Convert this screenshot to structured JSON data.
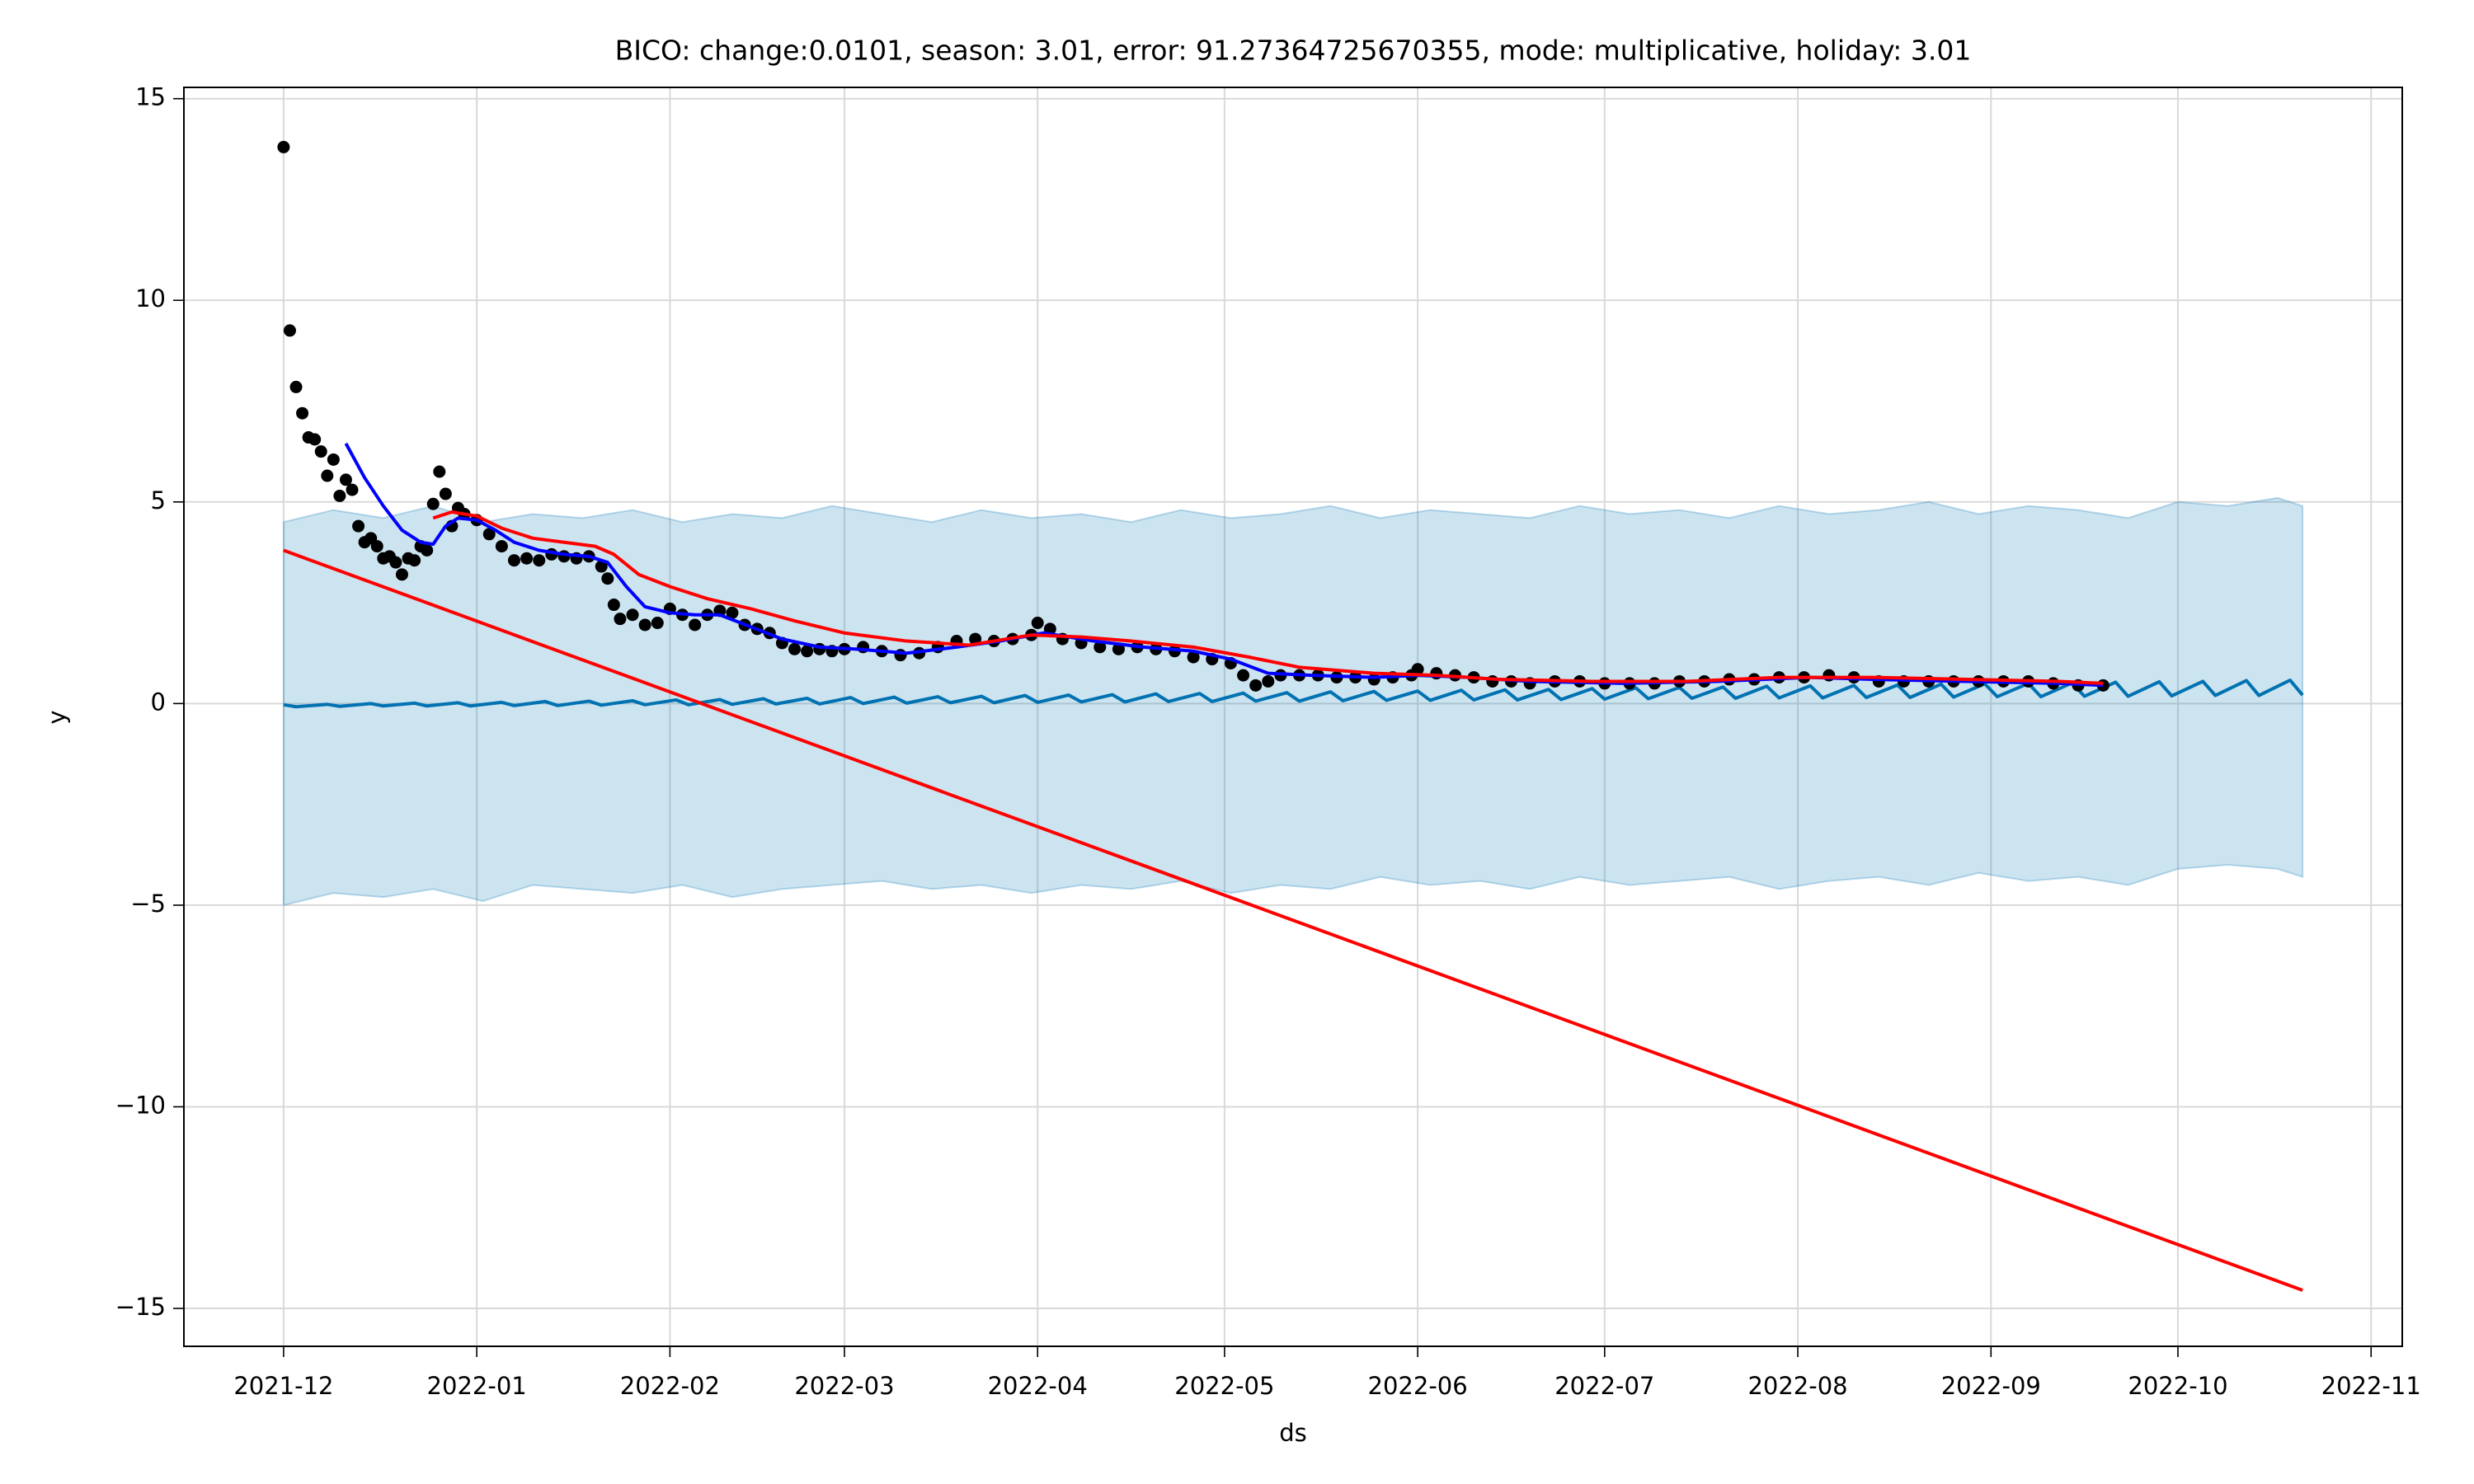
{
  "chart_data": {
    "type": "forecast",
    "title": "BICO: change:0.0101, season: 3.01, error: 91.27364725670355, mode: multiplicative, holiday: 3.01",
    "x_label": "ds",
    "y_label": "y",
    "grid": true,
    "xlim": [
      -16,
      340
    ],
    "ylim": [
      -15.94,
      15.28
    ],
    "xticks": [
      {
        "value": 0,
        "label": "2021-12"
      },
      {
        "value": 31,
        "label": "2022-01"
      },
      {
        "value": 62,
        "label": "2022-02"
      },
      {
        "value": 90,
        "label": "2022-03"
      },
      {
        "value": 121,
        "label": "2022-04"
      },
      {
        "value": 151,
        "label": "2022-05"
      },
      {
        "value": 182,
        "label": "2022-06"
      },
      {
        "value": 212,
        "label": "2022-07"
      },
      {
        "value": 243,
        "label": "2022-08"
      },
      {
        "value": 274,
        "label": "2022-09"
      },
      {
        "value": 304,
        "label": "2022-10"
      },
      {
        "value": 335,
        "label": "2022-11"
      }
    ],
    "yticks": [
      {
        "value": -15,
        "label": "−15"
      },
      {
        "value": -10,
        "label": "−10"
      },
      {
        "value": -5,
        "label": "−5"
      },
      0,
      5,
      10,
      15
    ],
    "series": [
      {
        "type": "band",
        "color": "#0072b2",
        "x": [
          0,
          8,
          16,
          24,
          32,
          40,
          48,
          56,
          64,
          72,
          80,
          88,
          96,
          104,
          112,
          120,
          128,
          136,
          144,
          152,
          160,
          168,
          176,
          184,
          192,
          200,
          208,
          216,
          224,
          232,
          240,
          248,
          256,
          264,
          272,
          280,
          288,
          296,
          304,
          312,
          320,
          324
        ],
        "upper": [
          4.5,
          4.8,
          4.6,
          4.9,
          4.5,
          4.7,
          4.6,
          4.8,
          4.5,
          4.7,
          4.6,
          4.9,
          4.7,
          4.5,
          4.8,
          4.6,
          4.7,
          4.5,
          4.8,
          4.6,
          4.7,
          4.9,
          4.6,
          4.8,
          4.7,
          4.6,
          4.9,
          4.7,
          4.8,
          4.6,
          4.9,
          4.7,
          4.8,
          5.0,
          4.7,
          4.9,
          4.8,
          4.6,
          5.0,
          4.9,
          5.1,
          4.9
        ],
        "lower": [
          -5.0,
          -4.7,
          -4.8,
          -4.6,
          -4.9,
          -4.5,
          -4.6,
          -4.7,
          -4.5,
          -4.8,
          -4.6,
          -4.5,
          -4.4,
          -4.6,
          -4.5,
          -4.7,
          -4.5,
          -4.6,
          -4.4,
          -4.7,
          -4.5,
          -4.6,
          -4.3,
          -4.5,
          -4.4,
          -4.6,
          -4.3,
          -4.5,
          -4.4,
          -4.3,
          -4.6,
          -4.4,
          -4.3,
          -4.5,
          -4.2,
          -4.4,
          -4.3,
          -4.5,
          -4.1,
          -4.0,
          -4.1,
          -4.3
        ]
      },
      {
        "type": "line",
        "color": "#0072b2",
        "x": [
          0,
          2,
          7,
          9,
          14,
          16,
          21,
          23,
          28,
          30,
          35,
          37,
          42,
          44,
          49,
          51,
          56,
          58,
          63,
          65,
          70,
          72,
          77,
          79,
          84,
          86,
          91,
          93,
          98,
          100,
          105,
          107,
          112,
          114,
          119,
          121,
          126,
          128,
          133,
          135,
          140,
          142,
          147,
          149,
          154,
          156,
          161,
          163,
          168,
          170,
          175,
          177,
          182,
          184,
          189,
          191,
          196,
          198,
          203,
          205,
          210,
          212,
          217,
          219,
          224,
          226,
          231,
          233,
          238,
          240,
          245,
          247,
          252,
          254,
          259,
          261,
          266,
          268,
          273,
          275,
          280,
          282,
          287,
          289,
          294,
          296,
          301,
          303,
          308,
          310,
          315,
          317,
          322,
          324
        ],
        "values": [
          -0.03,
          -0.08,
          -0.02,
          -0.07,
          0.0,
          -0.06,
          0.01,
          -0.06,
          0.02,
          -0.06,
          0.03,
          -0.05,
          0.05,
          -0.05,
          0.06,
          -0.04,
          0.07,
          -0.03,
          0.09,
          -0.03,
          0.1,
          -0.02,
          0.12,
          -0.01,
          0.13,
          -0.01,
          0.15,
          0.0,
          0.16,
          0.01,
          0.17,
          0.02,
          0.18,
          0.02,
          0.2,
          0.03,
          0.21,
          0.04,
          0.22,
          0.04,
          0.24,
          0.05,
          0.25,
          0.05,
          0.26,
          0.06,
          0.27,
          0.06,
          0.29,
          0.07,
          0.3,
          0.08,
          0.31,
          0.08,
          0.33,
          0.09,
          0.34,
          0.09,
          0.35,
          0.1,
          0.37,
          0.11,
          0.39,
          0.12,
          0.4,
          0.13,
          0.41,
          0.13,
          0.43,
          0.14,
          0.44,
          0.14,
          0.45,
          0.15,
          0.46,
          0.15,
          0.48,
          0.16,
          0.49,
          0.17,
          0.5,
          0.17,
          0.51,
          0.18,
          0.53,
          0.18,
          0.54,
          0.19,
          0.55,
          0.2,
          0.57,
          0.2,
          0.58,
          0.21
        ]
      },
      {
        "type": "scatter",
        "color": "#000000",
        "x": [
          0,
          1,
          2,
          3,
          4,
          5,
          6,
          7,
          8,
          9,
          10,
          11,
          12,
          13,
          14,
          15,
          16,
          17,
          18,
          19,
          20,
          21,
          22,
          23,
          24,
          25,
          26,
          27,
          28,
          29,
          31,
          33,
          35,
          37,
          39,
          41,
          43,
          45,
          47,
          49,
          51,
          52,
          53,
          54,
          56,
          58,
          60,
          62,
          64,
          66,
          68,
          70,
          72,
          74,
          76,
          78,
          80,
          82,
          84,
          86,
          88,
          90,
          93,
          96,
          99,
          102,
          105,
          108,
          111,
          114,
          117,
          120,
          121,
          123,
          125,
          128,
          131,
          134,
          137,
          140,
          143,
          146,
          149,
          152,
          154,
          156,
          158,
          160,
          163,
          166,
          169,
          172,
          175,
          178,
          181,
          182,
          185,
          188,
          191,
          194,
          197,
          200,
          204,
          208,
          212,
          216,
          220,
          224,
          228,
          232,
          236,
          240,
          244,
          248,
          252,
          256,
          260,
          264,
          268,
          272,
          276,
          280,
          284,
          288,
          292
        ],
        "values": [
          13.8,
          9.25,
          7.85,
          7.2,
          6.6,
          6.55,
          6.25,
          5.65,
          6.05,
          5.15,
          5.55,
          5.3,
          4.4,
          4.0,
          4.1,
          3.9,
          3.6,
          3.65,
          3.5,
          3.2,
          3.6,
          3.55,
          3.9,
          3.8,
          4.95,
          5.75,
          5.2,
          4.4,
          4.85,
          4.7,
          4.55,
          4.2,
          3.9,
          3.55,
          3.6,
          3.55,
          3.7,
          3.65,
          3.6,
          3.65,
          3.4,
          3.1,
          2.45,
          2.1,
          2.2,
          1.95,
          2.0,
          2.35,
          2.2,
          1.95,
          2.2,
          2.3,
          2.25,
          1.95,
          1.85,
          1.75,
          1.5,
          1.35,
          1.3,
          1.35,
          1.3,
          1.35,
          1.4,
          1.3,
          1.2,
          1.25,
          1.4,
          1.55,
          1.6,
          1.55,
          1.6,
          1.7,
          2.0,
          1.85,
          1.6,
          1.5,
          1.4,
          1.35,
          1.4,
          1.35,
          1.3,
          1.15,
          1.1,
          1.0,
          0.7,
          0.45,
          0.55,
          0.7,
          0.7,
          0.7,
          0.65,
          0.65,
          0.6,
          0.65,
          0.7,
          0.85,
          0.75,
          0.7,
          0.65,
          0.55,
          0.55,
          0.5,
          0.55,
          0.55,
          0.5,
          0.5,
          0.5,
          0.55,
          0.55,
          0.6,
          0.6,
          0.65,
          0.65,
          0.7,
          0.65,
          0.55,
          0.55,
          0.55,
          0.55,
          0.55,
          0.55,
          0.55,
          0.5,
          0.45,
          0.45
        ]
      },
      {
        "type": "line",
        "color": "#ff0000",
        "x": [
          0,
          324
        ],
        "values": [
          3.8,
          -14.55
        ]
      },
      {
        "type": "line",
        "color": "#0000ff",
        "x": [
          10,
          13,
          16,
          19,
          22,
          24,
          26,
          28,
          31,
          34,
          37,
          41,
          45,
          49,
          52,
          55,
          58,
          62,
          66,
          70,
          75,
          80,
          86,
          92,
          100,
          108,
          115,
          122,
          130,
          138,
          146,
          152,
          158,
          165,
          175,
          182,
          190,
          200,
          215,
          230,
          245,
          255,
          270,
          285,
          292
        ],
        "values": [
          6.45,
          5.6,
          4.9,
          4.3,
          4.0,
          3.95,
          4.4,
          4.6,
          4.55,
          4.3,
          4.0,
          3.8,
          3.7,
          3.65,
          3.5,
          2.9,
          2.4,
          2.25,
          2.2,
          2.2,
          1.9,
          1.6,
          1.4,
          1.35,
          1.25,
          1.4,
          1.55,
          1.75,
          1.55,
          1.4,
          1.3,
          1.1,
          0.75,
          0.7,
          0.65,
          0.7,
          0.65,
          0.55,
          0.5,
          0.55,
          0.65,
          0.6,
          0.55,
          0.5,
          0.45
        ]
      },
      {
        "type": "line",
        "color": "#ff0000",
        "x": [
          24,
          27,
          31,
          35,
          40,
          45,
          50,
          53,
          57,
          62,
          68,
          75,
          82,
          90,
          100,
          110,
          120,
          128,
          136,
          146,
          155,
          163,
          175,
          185,
          195,
          210,
          225,
          240,
          255,
          270,
          285,
          292
        ],
        "values": [
          4.6,
          4.75,
          4.65,
          4.35,
          4.1,
          4.0,
          3.9,
          3.7,
          3.2,
          2.9,
          2.6,
          2.35,
          2.05,
          1.75,
          1.55,
          1.45,
          1.7,
          1.65,
          1.55,
          1.4,
          1.15,
          0.9,
          0.75,
          0.7,
          0.6,
          0.55,
          0.55,
          0.65,
          0.65,
          0.6,
          0.55,
          0.5
        ]
      }
    ]
  }
}
